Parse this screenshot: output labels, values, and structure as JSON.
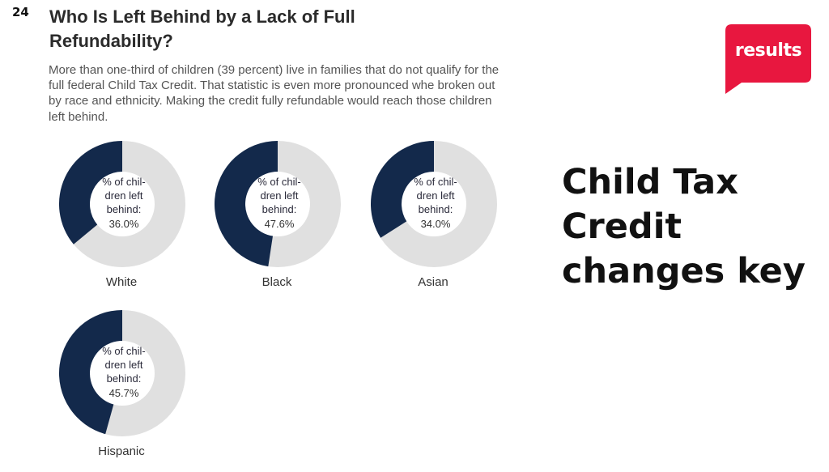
{
  "slide_number": "24",
  "title": "Who Is Left Behind by a Lack of Full Refundability?",
  "subtitle": "More than one-third of children (39 percent) live in families that do not qualify for the full federal Child Tax Credit. That statistic is even more pronounced whe broken out by race and ethnicity. Making the credit fully refundable would reach those children left behind.",
  "logo_text": "results",
  "headline": "Child Tax Credit changes key",
  "colors": {
    "filled": "#13294b",
    "remaining": "#e0e0e0",
    "logo_bg": "#e8173f"
  },
  "chart_data": {
    "type": "pie",
    "variant": "donut",
    "center_label": "% of chil- dren left behind:",
    "categories": [
      "White",
      "Black",
      "Asian",
      "Hispanic"
    ],
    "values": [
      36.0,
      47.6,
      34.0,
      45.7
    ],
    "value_labels": [
      "36.0%",
      "47.6%",
      "34.0%",
      "45.7%"
    ],
    "unit": "%",
    "max": 100
  }
}
